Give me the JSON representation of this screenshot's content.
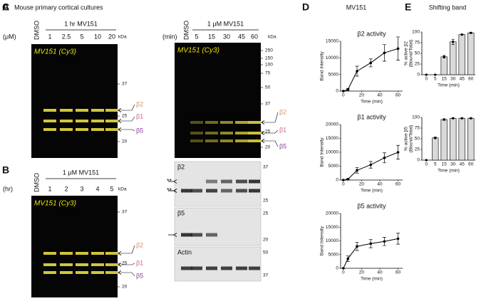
{
  "panels": {
    "A": {
      "label": "A",
      "title": "Mouse primary cortical cultures",
      "unit": "(μM)",
      "control": "DMSO",
      "condition": "1 hr MV151",
      "lanes": [
        "1",
        "2.5",
        "5",
        "10",
        "20"
      ],
      "kda": "kDa",
      "gel_label": "MV151 (Cy3)",
      "markers": [
        "37",
        "25",
        "20"
      ],
      "bands": [
        "β2",
        "β1",
        "β5"
      ]
    },
    "B": {
      "label": "B",
      "unit": "(hr)",
      "control": "DMSO",
      "condition": "1 μM MV151",
      "lanes": [
        "1",
        "2",
        "3",
        "4",
        "5"
      ],
      "kda": "kDa",
      "gel_label": "MV151 (Cy3)",
      "markers": [
        "37",
        "25",
        "20"
      ],
      "bands": [
        "β2",
        "β1",
        "β5"
      ]
    },
    "C": {
      "label": "C",
      "unit": "(min)",
      "control": "DMSO",
      "condition": "1 μM MV151",
      "lanes": [
        "5",
        "15",
        "30",
        "45",
        "60"
      ],
      "kda": "kDa",
      "gel_label": "MV151 (Cy3)",
      "markers": [
        "250",
        "150",
        "100",
        "75",
        "50",
        "37",
        "25",
        "20"
      ],
      "bands": [
        "β2",
        "β1",
        "β5"
      ],
      "blots": [
        {
          "label": "β2",
          "shift": "**",
          "markers": [
            "37",
            "25"
          ]
        },
        {
          "label": "β5",
          "shift": "**",
          "markers": [
            "25",
            "20"
          ]
        },
        {
          "label": "Actin",
          "markers": [
            "50",
            "37"
          ]
        }
      ]
    },
    "D": {
      "label": "D",
      "title": "MV151"
    },
    "E": {
      "label": "E",
      "title": "Shifting band"
    }
  },
  "chart_data": [
    {
      "type": "line",
      "title": "β2 activity",
      "x_label": "Time (min)",
      "y_label": "Band Intensity",
      "x": [
        0,
        5,
        15,
        30,
        45,
        60
      ],
      "values": [
        0,
        500,
        6000,
        8500,
        11500,
        12800
      ],
      "errors": [
        0,
        300,
        1500,
        1200,
        2500,
        3500
      ],
      "color": "#000000",
      "xlim": [
        -3,
        65
      ],
      "ylim": [
        0,
        15000
      ],
      "xticks": [
        0,
        20,
        40,
        60
      ],
      "yticks": [
        0,
        5000,
        10000,
        15000
      ]
    },
    {
      "type": "line",
      "title": "β1 activity",
      "x_label": "Time (min)",
      "y_label": "Band Intensity",
      "x": [
        0,
        5,
        15,
        30,
        45,
        60
      ],
      "values": [
        0,
        300,
        3500,
        5500,
        8000,
        10000
      ],
      "errors": [
        0,
        200,
        1000,
        1200,
        1800,
        2500
      ],
      "color": "#000000",
      "xlim": [
        -3,
        65
      ],
      "ylim": [
        0,
        20000
      ],
      "xticks": [
        0,
        20,
        40,
        60
      ],
      "yticks": [
        0,
        5000,
        10000,
        15000,
        20000
      ]
    },
    {
      "type": "line",
      "title": "β5 activity",
      "x_label": "Time (min)",
      "y_label": "Band Intensity",
      "x": [
        0,
        5,
        15,
        30,
        45,
        60
      ],
      "values": [
        0,
        3500,
        8000,
        9000,
        9800,
        10800
      ],
      "errors": [
        0,
        1000,
        1500,
        1500,
        1500,
        2000
      ],
      "color": "#000000",
      "xlim": [
        -3,
        65
      ],
      "ylim": [
        0,
        20000
      ],
      "xticks": [
        0,
        20,
        40,
        60
      ],
      "yticks": [
        0,
        5000,
        10000,
        15000,
        20000
      ]
    },
    {
      "type": "bar",
      "x_label": "Time (min)",
      "y_label": "% active β2",
      "y_label_note": "(Bound/Total)",
      "categories": [
        "0",
        "5",
        "15",
        "30",
        "45",
        "60"
      ],
      "values": [
        0,
        0,
        42,
        77,
        94,
        98
      ],
      "errors": [
        0,
        0,
        3,
        6,
        1,
        1
      ],
      "color": "#d9d9d9",
      "ylim": [
        0,
        100
      ],
      "yticks": [
        0,
        25,
        50,
        75,
        100
      ]
    },
    {
      "type": "bar",
      "x_label": "Time (min)",
      "y_label": "% active β5",
      "y_label_note": "(Bound/Total)",
      "categories": [
        "0",
        "5",
        "15",
        "30",
        "45",
        "60"
      ],
      "values": [
        0,
        52,
        95,
        98,
        98,
        98
      ],
      "errors": [
        0,
        2,
        2,
        1,
        1,
        1
      ],
      "color": "#d9d9d9",
      "ylim": [
        0,
        100
      ],
      "yticks": [
        0,
        25,
        50,
        75,
        100
      ]
    }
  ]
}
